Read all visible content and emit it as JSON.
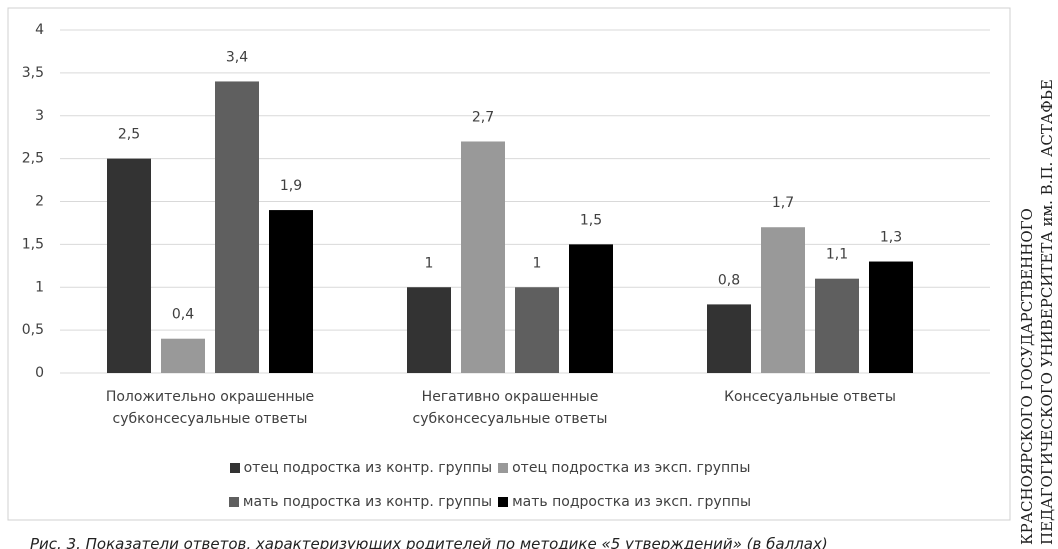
{
  "chart_data": {
    "type": "bar",
    "categories": [
      "Положительно окрашенные\nсубконсесуальные ответы",
      "Негативно окрашенные\nсубконсесуальные ответы",
      "Консесуальные ответы"
    ],
    "series": [
      {
        "name": "отец подростка из контр. группы",
        "color": "#333333",
        "values": [
          2.5,
          1,
          0.8
        ],
        "value_labels": [
          "2,5",
          "1",
          "0,8"
        ]
      },
      {
        "name": "отец подростка из эксп. группы",
        "color": "#999999",
        "values": [
          0.4,
          2.7,
          1.7
        ],
        "value_labels": [
          "0,4",
          "2,7",
          "1,7"
        ]
      },
      {
        "name": "мать подростка из контр. группы",
        "color": "#5f5f5f",
        "values": [
          3.4,
          1,
          1.1
        ],
        "value_labels": [
          "3,4",
          "1",
          "1,1"
        ]
      },
      {
        "name": "мать подростка из эксп. группы",
        "color": "#000000",
        "values": [
          1.9,
          1.5,
          1.3
        ],
        "value_labels": [
          "1,9",
          "1,5",
          "1,3"
        ]
      }
    ],
    "ylim": [
      0,
      4
    ],
    "yticks": [
      0,
      {
        "value": 0.5,
        "label": "0,5"
      },
      1,
      {
        "value": 1.5,
        "label": "1,5"
      },
      2,
      {
        "value": 2.5,
        "label": "2,5"
      },
      3,
      {
        "value": 3.5,
        "label": "3,5"
      },
      4
    ],
    "grid": true,
    "legend": "bottom",
    "caption": "Рис. 3. Показатели ответов, характеризующих родителей по методике «5 утверждений» (в баллах)",
    "side_text": [
      "КРАСНОЯРСКОГО ГОСУДАРСТВЕННОГО",
      "ПЕДАГОГИЧЕСКОГО УНИВЕРСИТЕТА им. В.П. АСТАФЬЕ"
    ]
  }
}
